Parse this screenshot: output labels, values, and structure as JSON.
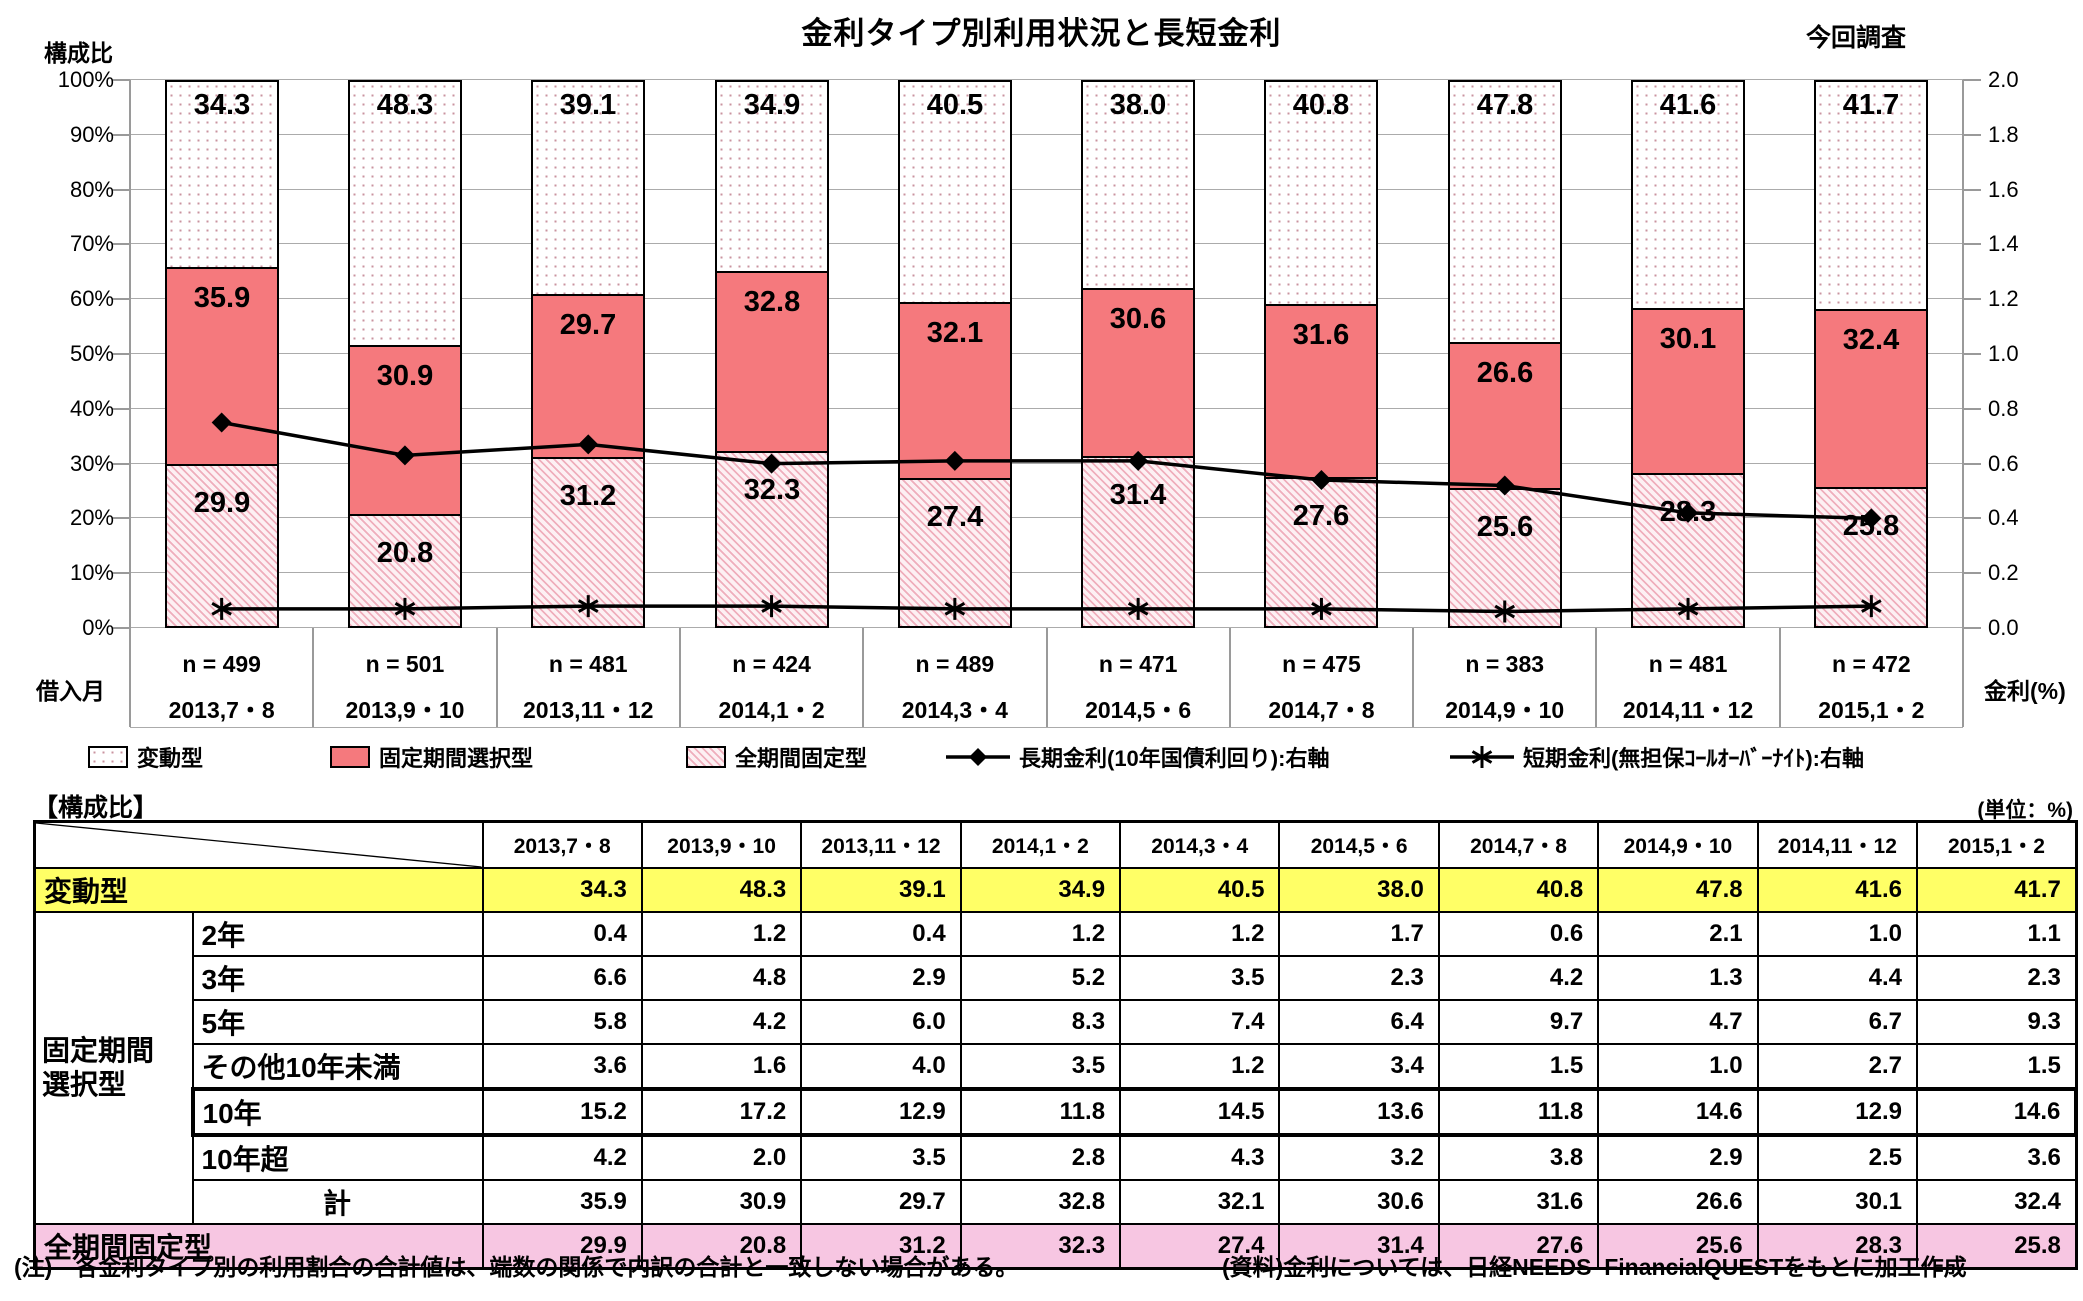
{
  "title": "金利タイプ別利用状況と長短金利",
  "survey_label": "今回調査",
  "chart_data": {
    "type": "bar",
    "subtype": "stacked-100pct-bars-with-two-lines",
    "categories": [
      "2013,7・8",
      "2013,9・10",
      "2013,11・12",
      "2014,1・2",
      "2014,3・4",
      "2014,5・6",
      "2014,7・8",
      "2014,9・10",
      "2014,11・12",
      "2015,1・2"
    ],
    "sample_sizes": [
      "n = 499",
      "n = 501",
      "n = 481",
      "n = 424",
      "n = 489",
      "n = 471",
      "n = 475",
      "n = 383",
      "n = 481",
      "n = 472"
    ],
    "x_axis_label": "借入月",
    "left_axis": {
      "label": "構成比",
      "min": 0,
      "max": 100,
      "ticks": [
        "100%",
        "90%",
        "80%",
        "70%",
        "60%",
        "50%",
        "40%",
        "30%",
        "20%",
        "10%",
        "0%"
      ]
    },
    "right_axis": {
      "label": "金利(%)",
      "min": 0.0,
      "max": 2.0,
      "ticks": [
        "2.0",
        "1.8",
        "1.6",
        "1.4",
        "1.2",
        "1.0",
        "0.8",
        "0.6",
        "0.4",
        "0.2",
        "0.0"
      ]
    },
    "grid": true,
    "legend_position": "bottom",
    "series": [
      {
        "name": "変動型",
        "type": "bar",
        "pattern": "dots",
        "values": [
          34.3,
          48.3,
          39.1,
          34.9,
          40.5,
          38.0,
          40.8,
          47.8,
          41.6,
          41.7
        ]
      },
      {
        "name": "固定期間選択型",
        "type": "bar",
        "pattern": "solid",
        "values": [
          35.9,
          30.9,
          29.7,
          32.8,
          32.1,
          30.6,
          31.6,
          26.6,
          30.1,
          32.4
        ]
      },
      {
        "name": "全期間固定型",
        "type": "bar",
        "pattern": "hatch",
        "values": [
          29.9,
          20.8,
          31.2,
          32.3,
          27.4,
          31.4,
          27.6,
          25.6,
          28.3,
          25.8
        ]
      },
      {
        "name": "長期金利(10年国債利回り):右軸",
        "type": "line",
        "marker": "diamond",
        "axis": "right",
        "values": [
          0.75,
          0.63,
          0.67,
          0.6,
          0.61,
          0.61,
          0.54,
          0.52,
          0.42,
          0.4
        ]
      },
      {
        "name": "短期金利(無担保ｺｰﾙｵｰﾊﾞｰﾅｲﾄ):右軸",
        "type": "line",
        "marker": "asterisk",
        "axis": "right",
        "values": [
          0.07,
          0.07,
          0.08,
          0.08,
          0.07,
          0.07,
          0.07,
          0.06,
          0.07,
          0.08
        ]
      }
    ],
    "colors": {
      "fixed_select_fill": "#f5797d",
      "full_fixed_stripe": "#efaebc",
      "variable_dot": "#c9939f",
      "line": "#000000",
      "gridline": "#ababab",
      "yellow_row": "#ffff66",
      "pink_row": "#f7c6e2"
    }
  },
  "table": {
    "title": "【構成比】",
    "unit_label": "(単位：%)",
    "header_columns": [
      "2013,7・8",
      "2013,9・10",
      "2013,11・12",
      "2014,1・2",
      "2014,3・4",
      "2014,5・6",
      "2014,7・8",
      "2014,9・10",
      "2014,11・12",
      "2015,1・2"
    ],
    "group_label": "固定期間\n選択型",
    "rows": [
      {
        "label": "変動型",
        "span": "full",
        "highlight": "yellow",
        "values": [
          34.3,
          48.3,
          39.1,
          34.9,
          40.5,
          38.0,
          40.8,
          47.8,
          41.6,
          41.7
        ]
      },
      {
        "label": "2年",
        "group": true,
        "values": [
          0.4,
          1.2,
          0.4,
          1.2,
          1.2,
          1.7,
          0.6,
          2.1,
          1.0,
          1.1
        ]
      },
      {
        "label": "3年",
        "group": true,
        "values": [
          6.6,
          4.8,
          2.9,
          5.2,
          3.5,
          2.3,
          4.2,
          1.3,
          4.4,
          2.3
        ]
      },
      {
        "label": "5年",
        "group": true,
        "values": [
          5.8,
          4.2,
          6.0,
          8.3,
          7.4,
          6.4,
          9.7,
          4.7,
          6.7,
          9.3
        ]
      },
      {
        "label": "その他10年未満",
        "group": true,
        "values": [
          3.6,
          1.6,
          4.0,
          3.5,
          1.2,
          3.4,
          1.5,
          1.0,
          2.7,
          1.5
        ]
      },
      {
        "label": "10年",
        "group": true,
        "emphasis": true,
        "values": [
          15.2,
          17.2,
          12.9,
          11.8,
          14.5,
          13.6,
          11.8,
          14.6,
          12.9,
          14.6
        ]
      },
      {
        "label": "10年超",
        "group": true,
        "values": [
          4.2,
          2.0,
          3.5,
          2.8,
          4.3,
          3.2,
          3.8,
          2.9,
          2.5,
          3.6
        ]
      },
      {
        "label": "計",
        "group": true,
        "align": "center",
        "values": [
          35.9,
          30.9,
          29.7,
          32.8,
          32.1,
          30.6,
          31.6,
          26.6,
          30.1,
          32.4
        ]
      },
      {
        "label": "全期間固定型",
        "span": "full",
        "highlight": "pink",
        "values": [
          29.9,
          20.8,
          31.2,
          32.3,
          27.4,
          31.4,
          27.6,
          25.6,
          28.3,
          25.8
        ]
      }
    ]
  },
  "notes": {
    "note": "(注)　各金利タイプ別の利用割合の合計値は、端数の関係で内訳の合計と一致しない場合がある。",
    "source": "(資料)金利については、日経NEEDS–FinancialQUESTをもとに加工作成"
  }
}
